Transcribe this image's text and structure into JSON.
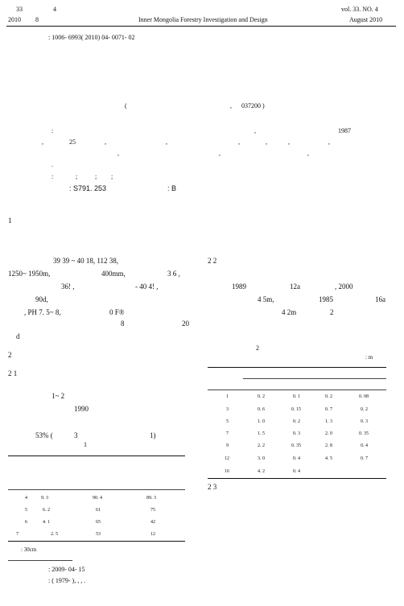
{
  "header": {
    "volume": "33",
    "number": "4",
    "year": "2010",
    "month": "8",
    "journal_en": "Inner Mongolia Forestry Investigation and Design",
    "vol_en": "vol. 33. NO. 4",
    "date_en": "August 2010"
  },
  "article_id": ": 1006- 6993( 2010) 04- 0071- 02",
  "affiliation": {
    "open": "(",
    "comma": ",",
    "postcode": "037200 )"
  },
  "abstract": {
    "colon": ":",
    "year_1987": "1987",
    "num_25": "25",
    "marks": [
      ",",
      ",",
      ",",
      ",",
      ",",
      ",",
      ",",
      ",",
      ",",
      ",",
      ",",
      "."
    ]
  },
  "keywords": {
    "colon": ":",
    "sep1": ";",
    "sep2": ";",
    "sep3": ";"
  },
  "classification": {
    "clc": ": S791. 253",
    "doc_code": ": B"
  },
  "left_col": {
    "sec1": "1",
    "line_coords": "39   39  ~  40   18,              112   38,",
    "line_alt": "1250~ 1950m,",
    "line_precip": "400mm,",
    "line_precip2": "3   6 ,",
    "line_temp": "36! ,",
    "line_temp2": "-  40  4! ,",
    "line_frost": "90d,",
    "line_ph": ",  PH     7. 5~ 8,",
    "line_ph2": "0  F®",
    "line_8": "8",
    "line_20": "20",
    "line_d": "d",
    "sec2": "2",
    "sec2_1": "2  1",
    "line_12": "1~  2",
    "line_1990": "1990",
    "line_53": "53% (",
    "line_3": "3",
    "line_1p": "1)",
    "table1_no": "1",
    "table1_rows": [
      [
        "4",
        "9. 3",
        "90. 4",
        "89. 3"
      ],
      [
        "5",
        "6. 2",
        "61",
        "75"
      ],
      [
        "6",
        "4. 1",
        "65",
        "42"
      ],
      [
        "7",
        "2. 5",
        "53",
        "12"
      ]
    ],
    "table1_note": ":                        30cm",
    "received": ":  2009-  04-   15",
    "author": ":           ( 1979- ),     ,                     ,                        ."
  },
  "right_col": {
    "sec2_2": "2  2",
    "line_1989": "1989",
    "line_12a": "12a",
    "line_2000": ", 2000",
    "line_45": "4  5m,",
    "line_1985": "1985",
    "line_16a": "16a",
    "line_42": "4  2m",
    "line_2": "2",
    "table2_no": "2",
    "table2_unit": ": m",
    "table2_rows": [
      [
        "1",
        "0. 2",
        "0. 1",
        "0. 2",
        "0. 08"
      ],
      [
        "3",
        "0. 6",
        "0. 15",
        "0. 7",
        "0. 2"
      ],
      [
        "5",
        "1. 0",
        "0. 2",
        "1. 3",
        "0. 3"
      ],
      [
        "7",
        "1. 5",
        "0. 3",
        "2. 0",
        "0. 35"
      ],
      [
        "9",
        "2. 2",
        "0. 35",
        "2. 8",
        "0. 4"
      ],
      [
        "12",
        "3. 0",
        "0. 4",
        "4. 5",
        "0. 7"
      ],
      [
        "16",
        "4. 2",
        "0. 4",
        "",
        ""
      ]
    ],
    "sec2_3": "2  3"
  }
}
